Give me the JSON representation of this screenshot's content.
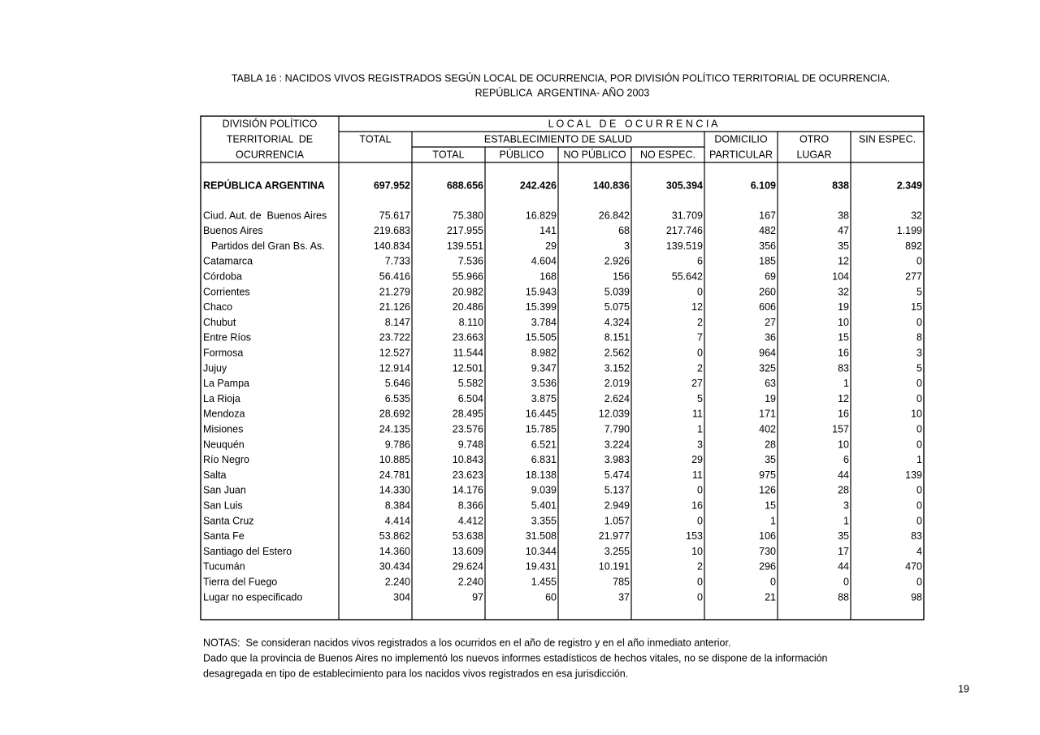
{
  "title": "TABLA 16 : NACIDOS VIVOS REGISTRADOS SEGÚN LOCAL DE OCURRENCIA, POR DIVISIÓN POLÍTICO TERRITORIAL DE OCURRENCIA.",
  "subtitle": "REPÚBLICA  ARGENTINA- AÑO 2003",
  "table": {
    "header": {
      "division": [
        "DIVISIÓN POLÍTICO",
        "TERRITORIAL  DE",
        "OCURRENCIA"
      ],
      "local": "L O C A L   D E   O C U R R E N C I A",
      "total": "TOTAL",
      "establecimiento": "ESTABLECIMIENTO DE SALUD",
      "establecimiento_sub": [
        "TOTAL",
        "PÚBLICO",
        "NO PÚBLICO",
        "NO ESPEC."
      ],
      "domicilio": [
        "DOMICILIO",
        "PARTICULAR"
      ],
      "otro": [
        "OTRO",
        "LUGAR"
      ],
      "sin_espec": "SIN ESPEC."
    },
    "total_row": [
      "REPÚBLICA ARGENTINA",
      "697.952",
      "688.656",
      "242.426",
      "140.836",
      "305.394",
      "6.109",
      "838",
      "2.349"
    ],
    "rows": [
      [
        "Ciud. Aut. de  Buenos Aires",
        "75.617",
        "75.380",
        "16.829",
        "26.842",
        "31.709",
        "167",
        "38",
        "32"
      ],
      [
        "Buenos Aires",
        "219.683",
        "217.955",
        "141",
        "68",
        "217.746",
        "482",
        "47",
        "1.199"
      ],
      [
        "Partidos del Gran Bs. As.",
        "140.834",
        "139.551",
        "29",
        "3",
        "139.519",
        "356",
        "35",
        "892"
      ],
      [
        "Catamarca",
        "7.733",
        "7.536",
        "4.604",
        "2.926",
        "6",
        "185",
        "12",
        "0"
      ],
      [
        "Córdoba",
        "56.416",
        "55.966",
        "168",
        "156",
        "55.642",
        "69",
        "104",
        "277"
      ],
      [
        "Corrientes",
        "21.279",
        "20.982",
        "15.943",
        "5.039",
        "0",
        "260",
        "32",
        "5"
      ],
      [
        "Chaco",
        "21.126",
        "20.486",
        "15.399",
        "5.075",
        "12",
        "606",
        "19",
        "15"
      ],
      [
        "Chubut",
        "8.147",
        "8.110",
        "3.784",
        "4.324",
        "2",
        "27",
        "10",
        "0"
      ],
      [
        "Entre Ríos",
        "23.722",
        "23.663",
        "15.505",
        "8.151",
        "7",
        "36",
        "15",
        "8"
      ],
      [
        "Formosa",
        "12.527",
        "11.544",
        "8.982",
        "2.562",
        "0",
        "964",
        "16",
        "3"
      ],
      [
        "Jujuy",
        "12.914",
        "12.501",
        "9.347",
        "3.152",
        "2",
        "325",
        "83",
        "5"
      ],
      [
        "La Pampa",
        "5.646",
        "5.582",
        "3.536",
        "2.019",
        "27",
        "63",
        "1",
        "0"
      ],
      [
        "La Rioja",
        "6.535",
        "6.504",
        "3.875",
        "2.624",
        "5",
        "19",
        "12",
        "0"
      ],
      [
        "Mendoza",
        "28.692",
        "28.495",
        "16.445",
        "12.039",
        "11",
        "171",
        "16",
        "10"
      ],
      [
        "Misiones",
        "24.135",
        "23.576",
        "15.785",
        "7.790",
        "1",
        "402",
        "157",
        "0"
      ],
      [
        "Neuquén",
        "9.786",
        "9.748",
        "6.521",
        "3.224",
        "3",
        "28",
        "10",
        "0"
      ],
      [
        "Río Negro",
        "10.885",
        "10.843",
        "6.831",
        "3.983",
        "29",
        "35",
        "6",
        "1"
      ],
      [
        "Salta",
        "24.781",
        "23.623",
        "18.138",
        "5.474",
        "11",
        "975",
        "44",
        "139"
      ],
      [
        "San Juan",
        "14.330",
        "14.176",
        "9.039",
        "5.137",
        "0",
        "126",
        "28",
        "0"
      ],
      [
        "San Luis",
        "8.384",
        "8.366",
        "5.401",
        "2.949",
        "16",
        "15",
        "3",
        "0"
      ],
      [
        "Santa Cruz",
        "4.414",
        "4.412",
        "3.355",
        "1.057",
        "0",
        "1",
        "1",
        "0"
      ],
      [
        "Santa Fe",
        "53.862",
        "53.638",
        "31.508",
        "21.977",
        "153",
        "106",
        "35",
        "83"
      ],
      [
        "Santiago del Estero",
        "14.360",
        "13.609",
        "10.344",
        "3.255",
        "10",
        "730",
        "17",
        "4"
      ],
      [
        "Tucumán",
        "30.434",
        "29.624",
        "19.431",
        "10.191",
        "2",
        "296",
        "44",
        "470"
      ],
      [
        "Tierra del Fuego",
        "2.240",
        "2.240",
        "1.455",
        "785",
        "0",
        "0",
        "0",
        "0"
      ],
      [
        "Lugar no especificado",
        "304",
        "97",
        "60",
        "37",
        "0",
        "21",
        "88",
        "98"
      ]
    ]
  },
  "notes": [
    "NOTAS:  Se consideran nacidos vivos registrados a los ocurridos en el año de registro y en el año inmediato anterior.",
    "Dado que la provincia de Buenos Aires no implementó los nuevos informes estadísticos de hechos vitales, no se dispone de la información",
    "desagregada en tipo de establecimiento para los nacidos vivos registrados en esa jurisdicción."
  ],
  "page_number": "19"
}
